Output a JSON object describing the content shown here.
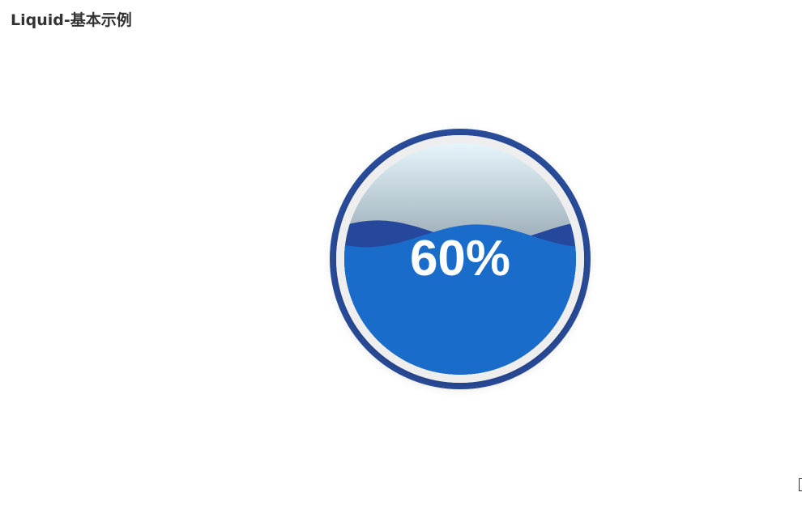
{
  "header": {
    "title": "Liquid-基本示例"
  },
  "chart_data": {
    "type": "liquid",
    "value": 0.6,
    "label": "60%",
    "colors": {
      "outline": "#2b4fa0",
      "outline_gap": "#eeeeee",
      "wave_front": "#1a6ccb",
      "wave_back": "#26489c",
      "background_top": "#e6f5fc",
      "background_bottom": "#a5b5bf",
      "label": "#ffffff"
    }
  }
}
